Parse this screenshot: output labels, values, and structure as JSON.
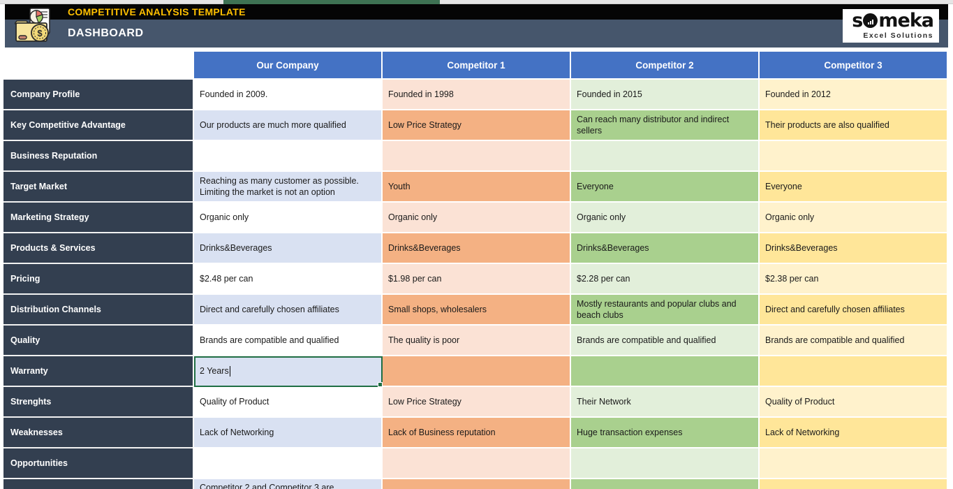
{
  "header": {
    "title": "COMPETITIVE ANALYSIS TEMPLATE",
    "subtitle": "DASHBOARD",
    "app_icon": "folder-chart-dollar-icon"
  },
  "brand": {
    "name": "someka",
    "name_parts": {
      "before_o": "s",
      "after_o": "meka"
    },
    "tagline": "Excel Solutions"
  },
  "table": {
    "columns": [
      "Our Company",
      "Competitor 1",
      "Competitor 2",
      "Competitor 3"
    ],
    "rows": [
      {
        "label": "Company Profile",
        "shade": "light",
        "cells": [
          "Founded in 2009.",
          "Founded in 1998",
          "Founded in 2015",
          "Founded in 2012"
        ]
      },
      {
        "label": "Key Competitive Advantage",
        "shade": "dark",
        "cells": [
          "Our products are much more qualified",
          "Low Price Strategy",
          "Can reach many distributor and indirect sellers",
          "Their products are also qualified"
        ]
      },
      {
        "label": "Business Reputation",
        "shade": "light",
        "cells": [
          "",
          "",
          "",
          ""
        ]
      },
      {
        "label": "Target Market",
        "shade": "dark",
        "cells": [
          "Reaching as many customer as possible.\nLimiting the market is not an option",
          "Youth",
          "Everyone",
          "Everyone"
        ]
      },
      {
        "label": "Marketing Strategy",
        "shade": "light",
        "cells": [
          "Organic only",
          "Organic only",
          "Organic only",
          "Organic only"
        ]
      },
      {
        "label": "Products & Services",
        "shade": "dark",
        "cells": [
          "Drinks&Beverages",
          "Drinks&Beverages",
          "Drinks&Beverages",
          "Drinks&Beverages"
        ]
      },
      {
        "label": "Pricing",
        "shade": "light",
        "cells": [
          "$2.48 per can",
          "$1.98 per can",
          "$2.28 per can",
          "$2.38 per can"
        ]
      },
      {
        "label": "Distribution Channels",
        "shade": "dark",
        "cells": [
          "Direct and carefully chosen affiliates",
          "Small shops, wholesalers",
          "Mostly restaurants and popular clubs and beach clubs",
          "Direct and carefully chosen affiliates"
        ]
      },
      {
        "label": "Quality",
        "shade": "light",
        "cells": [
          "Brands are compatible and qualified",
          "The quality is poor",
          "Brands are compatible and qualified",
          "Brands are compatible and qualified"
        ]
      },
      {
        "label": "Warranty",
        "shade": "dark",
        "selected_col": 0,
        "editing": true,
        "cells": [
          "2 Years",
          "",
          "",
          ""
        ]
      },
      {
        "label": "Strenghts",
        "shade": "light",
        "cells": [
          "Quality of Product",
          "Low Price Strategy",
          "Their Network",
          "Quality of Product"
        ]
      },
      {
        "label": "Weaknesses",
        "shade": "dark",
        "cells": [
          "Lack of Networking",
          "Lack of  Business reputation",
          "Huge transaction expenses",
          "Lack of Networking"
        ]
      },
      {
        "label": "Opportunities",
        "shade": "light",
        "cells": [
          "",
          "",
          "",
          ""
        ]
      },
      {
        "label": "",
        "shade": "dark",
        "partial": true,
        "cells": [
          "Competitor 2 and Competitor 3 are",
          "",
          "",
          ""
        ]
      }
    ]
  },
  "colors": {
    "header_blue": "#4472C4",
    "label_dark": "#333F50",
    "bar_slate": "#46566C",
    "bar_black": "#050505",
    "title_yellow": "#FFC000",
    "our_light": "#FFFFFF",
    "our_dark": "#D9E1F2",
    "c1_light": "#FBE2D5",
    "c1_dark": "#F4B183",
    "c2_light": "#E2EFDA",
    "c2_dark": "#A9D08E",
    "c3_light": "#FFF2CC",
    "c3_dark": "#FFE699",
    "selection_green": "#1F6E44",
    "top_strip_segment": "#3E7253"
  }
}
